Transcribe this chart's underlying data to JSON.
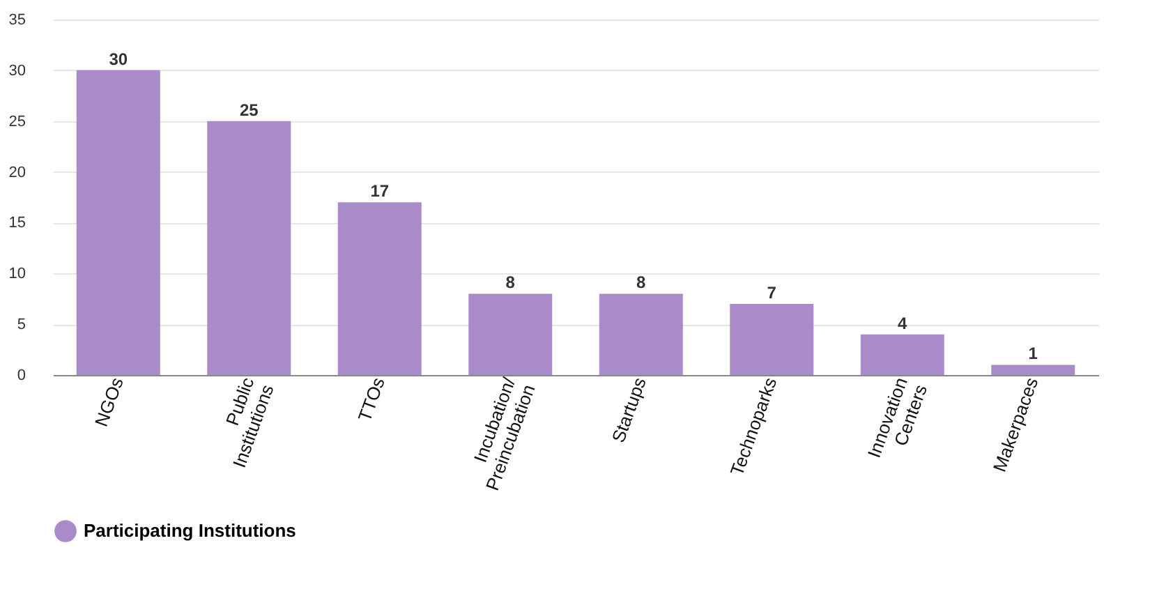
{
  "chart_data": {
    "type": "bar",
    "categories": [
      "NGOs",
      "Public\nInstitutions",
      "TTOs",
      "Incubation/\nPreincubation",
      "Startups",
      "Technoparks",
      "Innovation\nCenters",
      "Makerpaces"
    ],
    "series": [
      {
        "name": "Participating Institutions",
        "color": "#a98bc9",
        "values": [
          30,
          25,
          17,
          8,
          8,
          7,
          4,
          1
        ]
      }
    ],
    "ylim": [
      0,
      35
    ],
    "yticks": [
      0,
      5,
      10,
      15,
      20,
      25,
      30,
      35
    ],
    "grid": "y",
    "legend": "bottom",
    "data_labels": true
  }
}
